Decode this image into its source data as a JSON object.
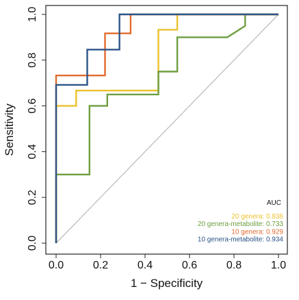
{
  "chart_data": {
    "type": "line",
    "title": "",
    "xlabel": "1 − Specificity",
    "ylabel": "Sensitivity",
    "xlim": [
      0,
      1
    ],
    "ylim": [
      0,
      1
    ],
    "x_ticks": [
      "0.0",
      "0.2",
      "0.4",
      "0.6",
      "0.8",
      "1.0"
    ],
    "y_ticks": [
      "0.0",
      "0.2",
      "0.4",
      "0.6",
      "0.8",
      "1.0"
    ],
    "grid": false,
    "legend_title": "AUC",
    "legend_position": "bottom-right",
    "reference_line": {
      "color": "#bdbdbd",
      "from": [
        0,
        0
      ],
      "to": [
        1,
        1
      ]
    },
    "series": [
      {
        "name": "20 genera",
        "auc_text": "20 genera: 0.836",
        "color": "#ebc12b",
        "points": [
          [
            0,
            0
          ],
          [
            0,
            0.3
          ],
          [
            0,
            0.6
          ],
          [
            0.09,
            0.6
          ],
          [
            0.09,
            0.667
          ],
          [
            0.46,
            0.667
          ],
          [
            0.46,
            0.933
          ],
          [
            0.545,
            0.933
          ],
          [
            0.545,
            1.0
          ],
          [
            1.0,
            1.0
          ]
        ]
      },
      {
        "name": "20 genera-metabolite",
        "auc_text": "20 genera-metabolite: 0.733",
        "color": "#6d9e3f",
        "points": [
          [
            0,
            0
          ],
          [
            0,
            0.3
          ],
          [
            0.15,
            0.3
          ],
          [
            0.15,
            0.6
          ],
          [
            0.23,
            0.6
          ],
          [
            0.23,
            0.65
          ],
          [
            0.46,
            0.65
          ],
          [
            0.46,
            0.75
          ],
          [
            0.545,
            0.75
          ],
          [
            0.545,
            0.9
          ],
          [
            0.77,
            0.9
          ],
          [
            0.85,
            0.95
          ],
          [
            0.85,
            1.0
          ],
          [
            1.0,
            1.0
          ]
        ]
      },
      {
        "name": "10 genera",
        "auc_text": "10 genera: 0.929",
        "color": "#e26a2c",
        "points": [
          [
            0,
            0
          ],
          [
            0,
            0.733
          ],
          [
            0.22,
            0.733
          ],
          [
            0.22,
            0.917
          ],
          [
            0.335,
            0.917
          ],
          [
            0.335,
            1.0
          ],
          [
            1.0,
            1.0
          ]
        ]
      },
      {
        "name": "10 genera-metabolite",
        "auc_text": "10 genera-metabolite: 0.934",
        "color": "#2c5487",
        "points": [
          [
            0,
            0
          ],
          [
            0,
            0.6
          ],
          [
            0,
            0.692
          ],
          [
            0.14,
            0.692
          ],
          [
            0.14,
            0.846
          ],
          [
            0.285,
            0.846
          ],
          [
            0.285,
            1.0
          ],
          [
            1.0,
            1.0
          ]
        ]
      }
    ]
  }
}
